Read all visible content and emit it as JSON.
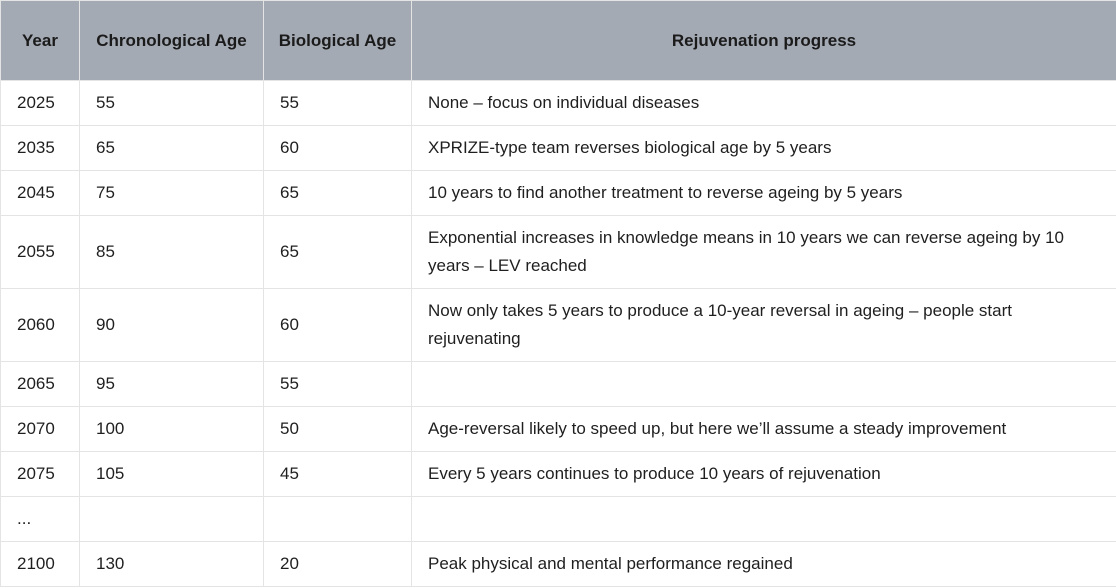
{
  "table": {
    "headers": [
      "Year",
      "Chronological Age",
      "Biological Age",
      "Rejuvenation progress"
    ],
    "rows": [
      [
        "2025",
        "55",
        "55",
        "None – focus on individual diseases"
      ],
      [
        "2035",
        "65",
        "60",
        "XPRIZE-type team reverses biological age by 5 years"
      ],
      [
        "2045",
        "75",
        "65",
        "10 years to find another treatment to reverse ageing by 5 years"
      ],
      [
        "2055",
        "85",
        "65",
        "Exponential increases in knowledge means in 10 years we can reverse ageing by 10 years – LEV reached"
      ],
      [
        "2060",
        "90",
        "60",
        "Now only takes 5 years to produce a 10-year reversal in ageing – people start rejuvenating"
      ],
      [
        "2065",
        "95",
        "55",
        ""
      ],
      [
        "2070",
        "100",
        "50",
        "Age-reversal likely to speed up, but here we’ll assume a steady improvement"
      ],
      [
        "2075",
        "105",
        "45",
        "Every 5 years continues to produce 10 years of rejuvenation"
      ],
      [
        "...",
        "",
        "",
        ""
      ],
      [
        "2100",
        "130",
        "20",
        "Peak physical and mental performance regained"
      ]
    ]
  },
  "colors": {
    "header_background": "#a4aab4",
    "border": "#e4e4e4",
    "text": "#1f1f1f"
  }
}
